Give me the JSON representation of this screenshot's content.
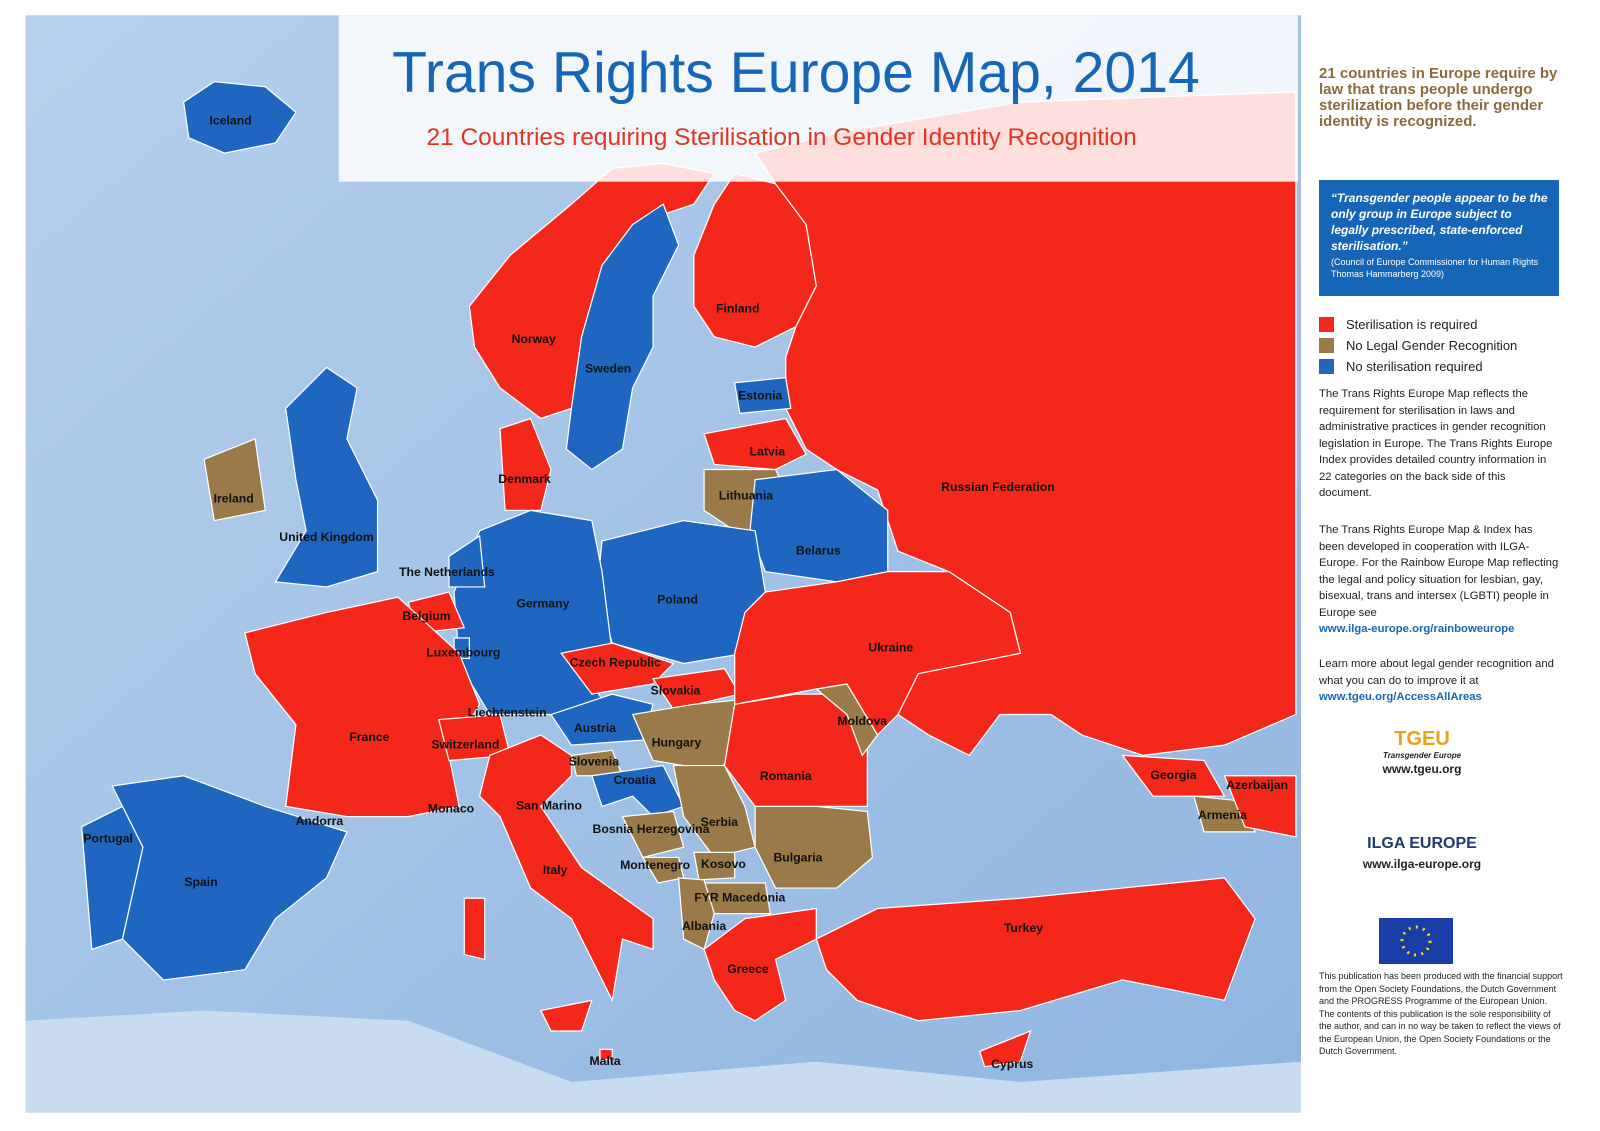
{
  "header": {
    "title": "Trans Rights Europe Map, 2014",
    "subtitle": "21 Countries requiring Sterilisation in Gender Identity Recognition"
  },
  "map": {
    "labels": [
      "Iceland",
      "Norway",
      "Sweden",
      "Finland",
      "Estonia",
      "Latvia",
      "Denmark",
      "Lithuania",
      "Russian Federation",
      "Ireland",
      "United Kingdom",
      "Belarus",
      "The Netherlands",
      "Germany",
      "Poland",
      "Belgium",
      "Luxembourg",
      "Ukraine",
      "Czech Republic",
      "Slovakia",
      "Liechtenstein",
      "Moldova",
      "Austria",
      "France",
      "Switzerland",
      "Hungary",
      "Slovenia",
      "Romania",
      "Georgia",
      "Azerbaijan",
      "Croatia",
      "San Marino",
      "Monaco",
      "Andorra",
      "Armenia",
      "Serbia",
      "Bosnia Herzegovina",
      "Portugal",
      "Bulgaria",
      "Montenegro",
      "Kosovo",
      "Italy",
      "Spain",
      "FYR Macedonia",
      "Albania",
      "Turkey",
      "Greece",
      "Malta",
      "Cyprus"
    ]
  },
  "sidebar": {
    "intro": "21 countries in Europe require by law that trans people undergo sterilization before their gender identity is recognized.",
    "quote": "“Transgender people appear to be the only group in Europe subject to legally prescribed, state-enforced sterilisation.”",
    "quote_source": "(Council of Europe Commissioner for Human Rights Thomas Hammarberg 2009)",
    "legend": [
      "Sterilisation is required",
      "No Legal Gender Recognition",
      "No sterilisation required"
    ],
    "paragraph1": "The Trans Rights Europe Map reflects the requirement for sterilisation in laws and administrative practices in gender recognition legislation in Europe. The Trans Rights Europe Index provides detailed country information in 22 categories on the back side of this document.",
    "paragraph2": "The Trans Rights Europe Map & Index has been developed in cooperation with ILGA-Europe. For the Rainbow Europe Map reflecting the legal and policy situation for lesbian, gay, bisexual, trans and intersex (LGBTI) people in Europe see",
    "link1": "www.ilga-europe.org/rainboweurope",
    "paragraph3": "Learn more about legal gender recognition and what you can do to improve it at",
    "link2": "www.tgeu.org/AccessAllAreas",
    "tgeu_name": "TGEU",
    "tgeu_full": "Transgender Europe",
    "tgeu_url": "www.tgeu.org",
    "ilga_name": "ILGA EUROPE",
    "ilga_url": "www.ilga-europe.org",
    "funding": "This publication has been produced with the financial support from the Open Society Foundations, the Dutch Government and the PROGRESS Programme of the European Union. The contents of this publication is the sole responsibility of the author, and can in no way be taken to reflect the views of the European Union, the Open Society Foundations or the Dutch Government."
  }
}
